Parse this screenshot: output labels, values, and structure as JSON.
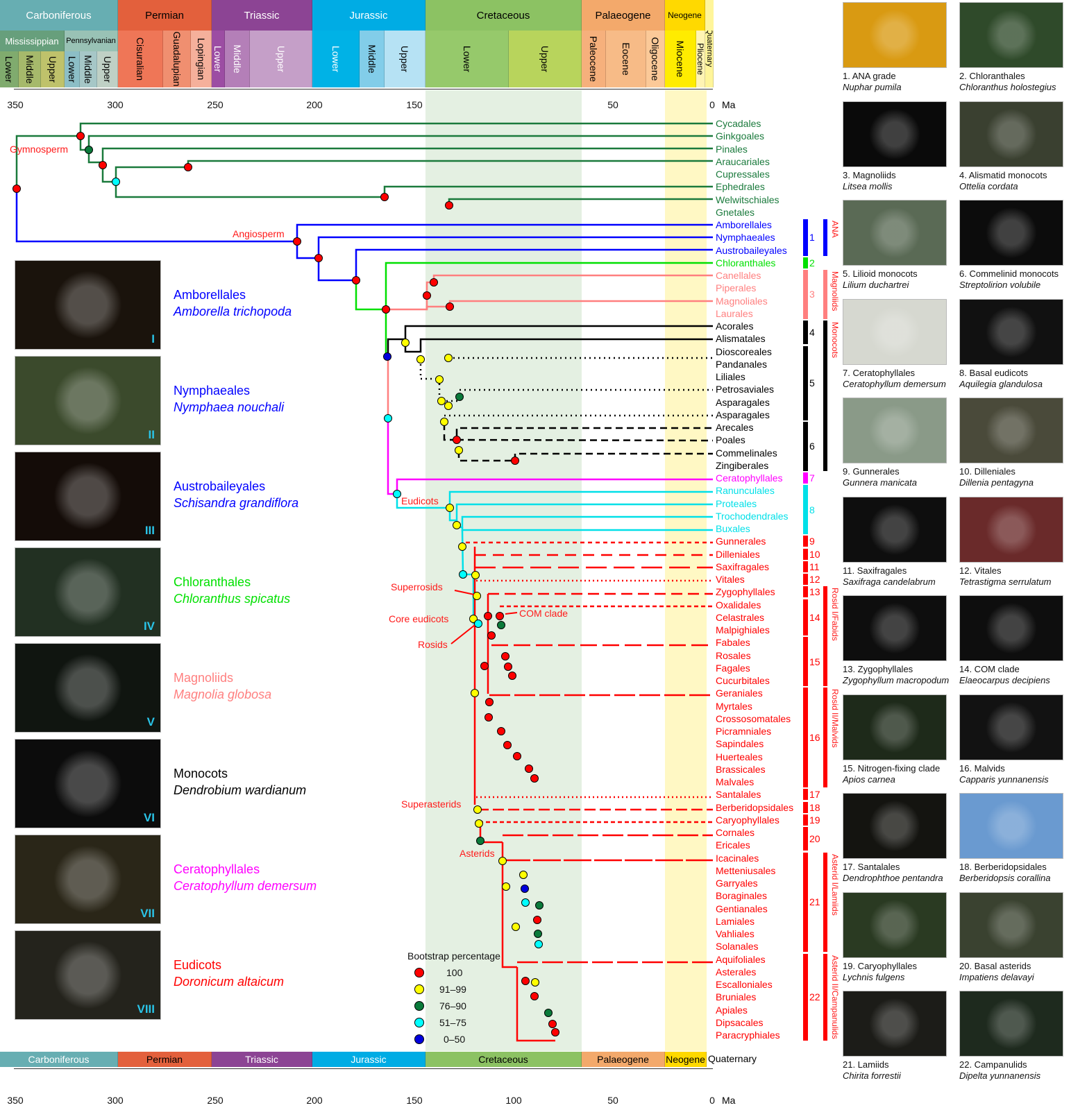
{
  "timescale_top": {
    "periods": [
      {
        "label": "Carboniferous",
        "color": "#67aeb2",
        "text": "#ffffff"
      },
      {
        "label": "Permian",
        "color": "#e3603c",
        "text": "#111111"
      },
      {
        "label": "Triassic",
        "color": "#8c4494",
        "text": "#ffffff"
      },
      {
        "label": "Jurassic",
        "color": "#00ace4",
        "text": "#ffffff"
      },
      {
        "label": "Cretaceous",
        "color": "#8cc263",
        "text": "#111111"
      },
      {
        "label": "Palaeogene",
        "color": "#f3a96b",
        "text": "#111111"
      },
      {
        "label": "Neogene",
        "color": "#ffd900",
        "text": "#111111"
      }
    ],
    "suberas": [
      {
        "label": "Mississippian"
      },
      {
        "label": "Pennsylvanian"
      }
    ],
    "epochs": [
      "Lower",
      "Middle",
      "Upper",
      "Lower",
      "Middle",
      "Upper",
      "Cisuralian",
      "Guadalupian",
      "Lopingian",
      "Lower",
      "Middle",
      "Upper",
      "Lower",
      "Middle",
      "Upper",
      "Lower",
      "Upper",
      "Paleocene",
      "Eocene",
      "Oligocene",
      "Miocene",
      "Pliocene",
      "Quaternary"
    ],
    "axis_ticks": [
      "350",
      "300",
      "250",
      "200",
      "150",
      "100",
      "50",
      "0"
    ],
    "axis_unit": "Ma"
  },
  "timescale_bottom": {
    "periods": [
      "Carboniferous",
      "Permian",
      "Triassic",
      "Jurassic",
      "Cretaceous",
      "Palaeogene",
      "Neogene",
      "Quaternary"
    ],
    "axis_ticks": [
      "350",
      "300",
      "250",
      "200",
      "150",
      "100",
      "50",
      "0"
    ],
    "axis_unit": "Ma"
  },
  "node_labels": {
    "gymnosperm": "Gymnosperm",
    "angiosperm": "Angiosperm",
    "eudicots": "Eudicots",
    "superrosids": "Superrosids",
    "core_eudicots": "Core eudicots",
    "rosids": "Rosids",
    "com_clade": "COM clade",
    "superasterids": "Superasterids",
    "asterids": "Asterids"
  },
  "tips": [
    {
      "label": "Cycadales",
      "color": "#1a7a3c"
    },
    {
      "label": "Ginkgoales",
      "color": "#1a7a3c"
    },
    {
      "label": "Pinales",
      "color": "#1a7a3c"
    },
    {
      "label": "Araucariales",
      "color": "#1a7a3c"
    },
    {
      "label": "Cupressales",
      "color": "#1a7a3c"
    },
    {
      "label": "Ephedrales",
      "color": "#1a7a3c"
    },
    {
      "label": "Welwitschiales",
      "color": "#1a7a3c"
    },
    {
      "label": "Gnetales",
      "color": "#1a7a3c"
    },
    {
      "label": "Amborellales",
      "color": "#0000ff"
    },
    {
      "label": "Nymphaeales",
      "color": "#0000ff"
    },
    {
      "label": "Austrobaileyales",
      "color": "#0000ff"
    },
    {
      "label": "Chloranthales",
      "color": "#00e000"
    },
    {
      "label": "Canellales",
      "color": "#ff7f7f"
    },
    {
      "label": "Piperales",
      "color": "#ff7f7f"
    },
    {
      "label": "Magnoliales",
      "color": "#ff7f7f"
    },
    {
      "label": "Laurales",
      "color": "#ff7f7f"
    },
    {
      "label": "Acorales",
      "color": "#000000"
    },
    {
      "label": "Alismatales",
      "color": "#000000"
    },
    {
      "label": "Dioscoreales",
      "color": "#000000"
    },
    {
      "label": "Pandanales",
      "color": "#000000"
    },
    {
      "label": "Liliales",
      "color": "#000000"
    },
    {
      "label": "Petrosaviales",
      "color": "#000000"
    },
    {
      "label": "Asparagales",
      "color": "#000000"
    },
    {
      "label": "Asparagales",
      "color": "#000000"
    },
    {
      "label": "Arecales",
      "color": "#000000"
    },
    {
      "label": "Poales",
      "color": "#000000"
    },
    {
      "label": "Commelinales",
      "color": "#000000"
    },
    {
      "label": "Zingiberales",
      "color": "#000000"
    },
    {
      "label": "Ceratophyllales",
      "color": "#ff00ff"
    },
    {
      "label": "Ranunculales",
      "color": "#00e0e8"
    },
    {
      "label": "Proteales",
      "color": "#00e0e8"
    },
    {
      "label": "Trochodendrales",
      "color": "#00e0e8"
    },
    {
      "label": "Buxales",
      "color": "#00e0e8"
    },
    {
      "label": "Gunnerales",
      "color": "#ff0000"
    },
    {
      "label": "Dilleniales",
      "color": "#ff0000"
    },
    {
      "label": "Saxifragales",
      "color": "#ff0000"
    },
    {
      "label": "Vitales",
      "color": "#ff0000"
    },
    {
      "label": "Zygophyllales",
      "color": "#ff0000"
    },
    {
      "label": "Oxalidales",
      "color": "#ff0000"
    },
    {
      "label": "Celastrales",
      "color": "#ff0000"
    },
    {
      "label": "Malpighiales",
      "color": "#ff0000"
    },
    {
      "label": "Fabales",
      "color": "#ff0000"
    },
    {
      "label": "Rosales",
      "color": "#ff0000"
    },
    {
      "label": "Fagales",
      "color": "#ff0000"
    },
    {
      "label": "Cucurbitales",
      "color": "#ff0000"
    },
    {
      "label": "Geraniales",
      "color": "#ff0000"
    },
    {
      "label": "Myrtales",
      "color": "#ff0000"
    },
    {
      "label": "Crossosomatales",
      "color": "#ff0000"
    },
    {
      "label": "Picramniales",
      "color": "#ff0000"
    },
    {
      "label": "Sapindales",
      "color": "#ff0000"
    },
    {
      "label": "Huerteales",
      "color": "#ff0000"
    },
    {
      "label": "Brassicales",
      "color": "#ff0000"
    },
    {
      "label": "Malvales",
      "color": "#ff0000"
    },
    {
      "label": "Santalales",
      "color": "#ff0000"
    },
    {
      "label": "Berberidopsidales",
      "color": "#ff0000"
    },
    {
      "label": "Caryophyllales",
      "color": "#ff0000"
    },
    {
      "label": "Cornales",
      "color": "#ff0000"
    },
    {
      "label": "Ericales",
      "color": "#ff0000"
    },
    {
      "label": "Icacinales",
      "color": "#ff0000"
    },
    {
      "label": "Metteniusales",
      "color": "#ff0000"
    },
    {
      "label": "Garryales",
      "color": "#ff0000"
    },
    {
      "label": "Boraginales",
      "color": "#ff0000"
    },
    {
      "label": "Gentianales",
      "color": "#ff0000"
    },
    {
      "label": "Lamiales",
      "color": "#ff0000"
    },
    {
      "label": "Vahliales",
      "color": "#ff0000"
    },
    {
      "label": "Solanales",
      "color": "#ff0000"
    },
    {
      "label": "Aquifoliales",
      "color": "#ff0000"
    },
    {
      "label": "Asterales",
      "color": "#ff0000"
    },
    {
      "label": "Escalloniales",
      "color": "#ff0000"
    },
    {
      "label": "Bruniales",
      "color": "#ff0000"
    },
    {
      "label": "Apiales",
      "color": "#ff0000"
    },
    {
      "label": "Dipsacales",
      "color": "#ff0000"
    },
    {
      "label": "Paracryphiales",
      "color": "#ff0000"
    }
  ],
  "clade_bars": [
    {
      "num": "1",
      "from": 8,
      "to": 10,
      "color": "#0000ff",
      "numcolor": "#0000ff"
    },
    {
      "num": "2",
      "from": 11,
      "to": 11,
      "color": "#00e000",
      "numcolor": "#00e000"
    },
    {
      "num": "3",
      "from": 12,
      "to": 15,
      "color": "#ff7f7f",
      "numcolor": "#ff7f7f"
    },
    {
      "num": "4",
      "from": 16,
      "to": 17,
      "color": "#000000",
      "numcolor": "#000000"
    },
    {
      "num": "5",
      "from": 18,
      "to": 23,
      "color": "#000000",
      "numcolor": "#000000"
    },
    {
      "num": "6",
      "from": 24,
      "to": 27,
      "color": "#000000",
      "numcolor": "#000000"
    },
    {
      "num": "7",
      "from": 28,
      "to": 28,
      "color": "#ff00ff",
      "numcolor": "#ff00ff"
    },
    {
      "num": "8",
      "from": 29,
      "to": 32,
      "color": "#00e0e8",
      "numcolor": "#00e0e8"
    },
    {
      "num": "9",
      "from": 33,
      "to": 33,
      "color": "#ff0000",
      "numcolor": "#ff0000"
    },
    {
      "num": "10",
      "from": 34,
      "to": 34,
      "color": "#ff0000",
      "numcolor": "#ff0000"
    },
    {
      "num": "11",
      "from": 35,
      "to": 35,
      "color": "#ff0000",
      "numcolor": "#ff0000"
    },
    {
      "num": "12",
      "from": 36,
      "to": 36,
      "color": "#ff0000",
      "numcolor": "#ff0000"
    },
    {
      "num": "13",
      "from": 37,
      "to": 37,
      "color": "#ff0000",
      "numcolor": "#ff0000"
    },
    {
      "num": "14",
      "from": 38,
      "to": 40,
      "color": "#ff0000",
      "numcolor": "#ff0000"
    },
    {
      "num": "15",
      "from": 41,
      "to": 44,
      "color": "#ff0000",
      "numcolor": "#ff0000"
    },
    {
      "num": "16",
      "from": 45,
      "to": 52,
      "color": "#ff0000",
      "numcolor": "#ff0000"
    },
    {
      "num": "17",
      "from": 53,
      "to": 53,
      "color": "#ff0000",
      "numcolor": "#ff0000"
    },
    {
      "num": "18",
      "from": 54,
      "to": 54,
      "color": "#ff0000",
      "numcolor": "#ff0000"
    },
    {
      "num": "19",
      "from": 55,
      "to": 55,
      "color": "#ff0000",
      "numcolor": "#ff0000"
    },
    {
      "num": "20",
      "from": 56,
      "to": 57,
      "color": "#ff0000",
      "numcolor": "#ff0000"
    },
    {
      "num": "21",
      "from": 58,
      "to": 65,
      "color": "#ff0000",
      "numcolor": "#ff0000"
    },
    {
      "num": "22",
      "from": 66,
      "to": 72,
      "color": "#ff0000",
      "numcolor": "#ff0000"
    }
  ],
  "group_bars": [
    {
      "label": "ANA",
      "from": 8,
      "to": 10,
      "color": "#0000ff"
    },
    {
      "label": "Magnoliids",
      "from": 12,
      "to": 15,
      "color": "#ff7f7f"
    },
    {
      "label": "Monocots",
      "from": 16,
      "to": 27,
      "color": "#000000"
    },
    {
      "label": "Rosid I/Fabids",
      "from": 37,
      "to": 44,
      "color": "#ff0000"
    },
    {
      "label": "Rosid II/Malvids",
      "from": 45,
      "to": 52,
      "color": "#ff0000"
    },
    {
      "label": "Asterid I/Lamiids",
      "from": 58,
      "to": 65,
      "color": "#ff0000"
    },
    {
      "label": "Asterid II/Campanulids",
      "from": 66,
      "to": 72,
      "color": "#ff0000"
    }
  ],
  "left_panels": [
    {
      "roman": "I",
      "name": "Amborellales",
      "species": "Amborella trichopoda",
      "color": "#0000ff",
      "bg": "#1a130c"
    },
    {
      "roman": "II",
      "name": "Nymphaeales",
      "species": "Nymphaea nouchali",
      "color": "#0000ff",
      "bg": "#3b4a2c"
    },
    {
      "roman": "III",
      "name": "Austrobaileyales",
      "species": "Schisandra grandiflora",
      "color": "#0000ff",
      "bg": "#140c08"
    },
    {
      "roman": "IV",
      "name": "Chloranthales",
      "species": "Chloranthus spicatus",
      "color": "#00e000",
      "bg": "#223022"
    },
    {
      "roman": "V",
      "name": "Magnoliids",
      "species": "Magnolia globosa",
      "color": "#ff7f7f",
      "bg": "#101510"
    },
    {
      "roman": "VI",
      "name": "Monocots",
      "species": "Dendrobium wardianum",
      "color": "#000000",
      "bg": "#0c0c0c"
    },
    {
      "roman": "VII",
      "name": "Ceratophyllales",
      "species": "Ceratophyllum demersum",
      "color": "#ff00ff",
      "bg": "#2a2618"
    },
    {
      "roman": "VIII",
      "name": "Eudicots",
      "species": "Doronicum altaicum",
      "color": "#ff0000",
      "bg": "#24231c"
    }
  ],
  "right_photos": [
    {
      "title": "1. ANA grade",
      "species": "Nuphar pumila",
      "bg": "#d99a12"
    },
    {
      "title": "2. Chloranthales",
      "species": "Chloranthus holostegius",
      "bg": "#2f4a2a"
    },
    {
      "title": "3. Magnoliids",
      "species": "Litsea mollis",
      "bg": "#0a0a0a"
    },
    {
      "title": "4. Alismatid monocots",
      "species": "Ottelia cordata",
      "bg": "#3a4030"
    },
    {
      "title": "5. Lilioid monocots",
      "species": "Lilium duchartrei",
      "bg": "#5a6a55"
    },
    {
      "title": "6. Commelinid monocots",
      "species": "Streptolirion volubile",
      "bg": "#0c0c0c"
    },
    {
      "title": "7. Ceratophyllales",
      "species": "Ceratophyllum demersum",
      "bg": "#d6d8d0"
    },
    {
      "title": "8. Basal eudicots",
      "species": "Aquilegia glandulosa",
      "bg": "#111111"
    },
    {
      "title": "9. Gunnerales",
      "species": "Gunnera manicata",
      "bg": "#8a9a88"
    },
    {
      "title": "10. Dilleniales",
      "species": "Dillenia pentagyna",
      "bg": "#4a4a3a"
    },
    {
      "title": "11. Saxifragales",
      "species": "Saxifraga candelabrum",
      "bg": "#0e0e0e"
    },
    {
      "title": "12. Vitales",
      "species": "Tetrastigma serrulatum",
      "bg": "#6a2a2a"
    },
    {
      "title": "13. Zygophyllales",
      "species": "Zygophyllum macropodum",
      "bg": "#0e0e0e"
    },
    {
      "title": "14. COM clade",
      "species": "Elaeocarpus decipiens",
      "bg": "#0e0e0e"
    },
    {
      "title": "15. Nitrogen-fixing clade",
      "species": "Apios carnea",
      "bg": "#1e2a1a"
    },
    {
      "title": "16. Malvids",
      "species": "Capparis yunnanensis",
      "bg": "#121212"
    },
    {
      "title": "17. Santalales",
      "species": "Dendrophthoe pentandra",
      "bg": "#141410"
    },
    {
      "title": "18. Berberidopsidales",
      "species": "Berberidopsis corallina",
      "bg": "#6a9ad0"
    },
    {
      "title": "19. Caryophyllales",
      "species": "Lychnis fulgens",
      "bg": "#2a3a22"
    },
    {
      "title": "20. Basal asterids",
      "species": "Impatiens delavayi",
      "bg": "#3a4230"
    },
    {
      "title": "21. Lamiids",
      "species": "Chirita forrestii",
      "bg": "#1c1c18"
    },
    {
      "title": "22. Campanulids",
      "species": "Dipelta yunnanensis",
      "bg": "#1e2a1e"
    }
  ],
  "legend": {
    "title": "Bootstrap percentage",
    "items": [
      {
        "label": "100",
        "color": "#ff0000"
      },
      {
        "label": "91–99",
        "color": "#ffff00"
      },
      {
        "label": "76–90",
        "color": "#0a7a3a"
      },
      {
        "label": "51–75",
        "color": "#00ffff"
      },
      {
        "label": "0–50",
        "color": "#0000dd"
      }
    ]
  }
}
